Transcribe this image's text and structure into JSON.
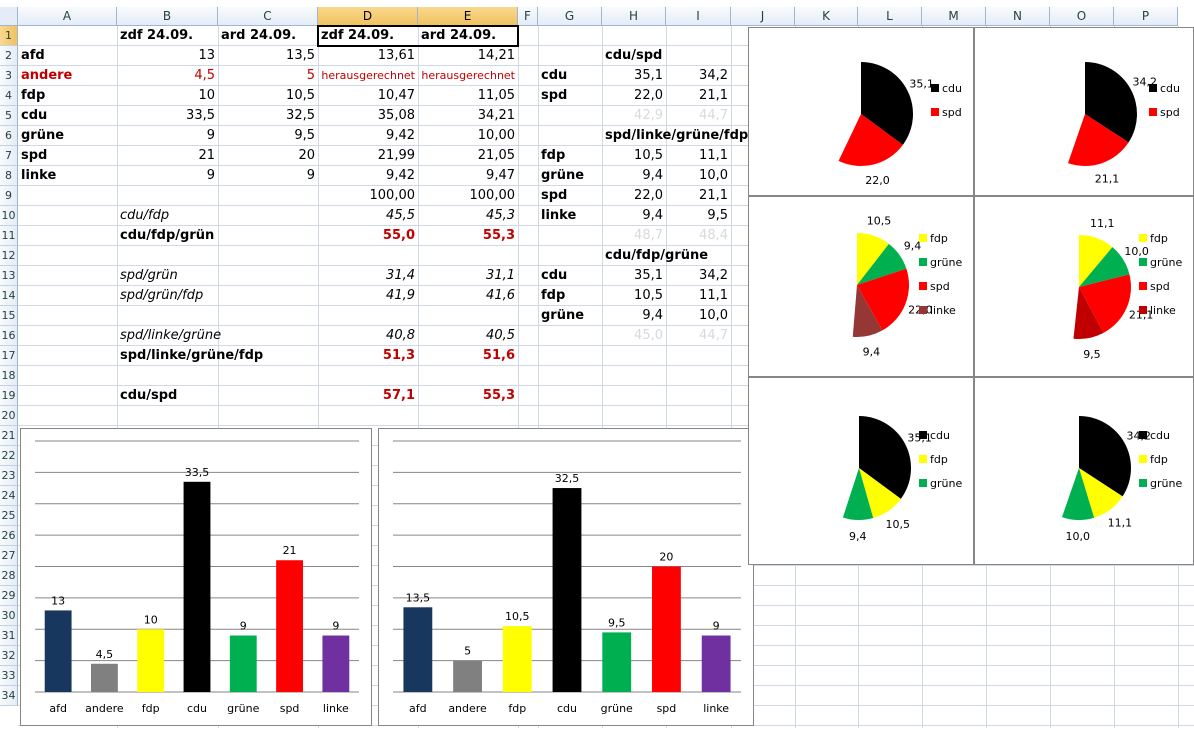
{
  "columns": [
    "A",
    "B",
    "C",
    "D",
    "E",
    "F",
    "G",
    "H",
    "I",
    "J",
    "K",
    "L",
    "M",
    "N",
    "O",
    "P"
  ],
  "rows": [
    "1",
    "2",
    "3",
    "4",
    "5",
    "6",
    "7",
    "8",
    "9",
    "10",
    "11",
    "12",
    "13",
    "14",
    "15",
    "16",
    "17",
    "18",
    "19",
    "20",
    "21",
    "22",
    "23",
    "24",
    "25",
    "26",
    "27",
    "28",
    "29",
    "30",
    "31",
    "32",
    "33",
    "34"
  ],
  "sheet": {
    "B1": "zdf 24.09.",
    "C1": "ard 24.09.",
    "D1": "zdf 24.09.",
    "E1": "ard 24.09.",
    "A2": "afd",
    "B2": "13",
    "C2": "13,5",
    "D2": "13,61",
    "E2": "14,21",
    "A3": "andere",
    "B3": "4,5",
    "C3": "5",
    "D3": "herausgerechnet",
    "E3": "herausgerechnet",
    "A4": "fdp",
    "B4": "10",
    "C4": "10,5",
    "D4": "10,47",
    "E4": "11,05",
    "A5": "cdu",
    "B5": "33,5",
    "C5": "32,5",
    "D5": "35,08",
    "E5": "34,21",
    "A6": "grüne",
    "B6": "9",
    "C6": "9,5",
    "D6": "9,42",
    "E6": "10,00",
    "A7": "spd",
    "B7": "21",
    "C7": "20",
    "D7": "21,99",
    "E7": "21,05",
    "A8": "linke",
    "B8": "9",
    "C8": "9",
    "D8": "9,42",
    "E8": "9,47",
    "D9": "100,00",
    "E9": "100,00",
    "B10": "cdu/fdp",
    "D10": "45,5",
    "E10": "45,3",
    "B11": "cdu/fdp/grün",
    "D11": "55,0",
    "E11": "55,3",
    "B13": "spd/grün",
    "D13": "31,4",
    "E13": "31,1",
    "B14": "spd/grün/fdp",
    "D14": "41,9",
    "E14": "41,6",
    "B16": "spd/linke/grüne",
    "D16": "40,8",
    "E16": "40,5",
    "B17": "spd/linke/grüne/fdp",
    "D17": "51,3",
    "E17": "51,6",
    "B19": "cdu/spd",
    "D19": "57,1",
    "E19": "55,3",
    "H2": "cdu/spd",
    "G3": "cdu",
    "H3": "35,1",
    "I3": "34,2",
    "G4": "spd",
    "H4": "22,0",
    "I4": "21,1",
    "H5": "42,9",
    "I5": "44,7",
    "H6": "spd/linke/grüne/fdp",
    "G7": "fdp",
    "H7": "10,5",
    "I7": "11,1",
    "G8": "grüne",
    "H8": "9,4",
    "I8": "10,0",
    "G9": "spd",
    "H9": "22,0",
    "I9": "21,1",
    "G10": "linke",
    "H10": "9,4",
    "I10": "9,5",
    "H11": "48,7",
    "I11": "48,4",
    "H12": "cdu/fdp/grüne",
    "G13": "cdu",
    "H13": "35,1",
    "I13": "34,2",
    "G14": "fdp",
    "H14": "10,5",
    "I14": "11,1",
    "G15": "grüne",
    "H15": "9,4",
    "I15": "10,0",
    "H16": "45,0",
    "I16": "44,7"
  },
  "colors": {
    "cdu": "#000000",
    "spd": "#ff0000",
    "fdp": "#ffff00",
    "grüne": "#00b050",
    "linke_dark": "#953735",
    "linke_dark2": "#c00000",
    "afd": "#17375e",
    "andere": "#808080",
    "linke": "#7030a0"
  },
  "chart_data": [
    {
      "type": "bar",
      "categories": [
        "afd",
        "andere",
        "fdp",
        "cdu",
        "grüne",
        "spd",
        "linke"
      ],
      "values": [
        13,
        4.5,
        10,
        33.5,
        9,
        21,
        9
      ],
      "value_labels": [
        "13",
        "4,5",
        "10",
        "33,5",
        "9",
        "21",
        "9"
      ],
      "ylim": [
        0,
        40
      ]
    },
    {
      "type": "bar",
      "categories": [
        "afd",
        "andere",
        "fdp",
        "cdu",
        "grüne",
        "spd",
        "linke"
      ],
      "values": [
        13.5,
        5,
        10.5,
        32.5,
        9.5,
        20,
        9
      ],
      "value_labels": [
        "13,5",
        "5",
        "10,5",
        "32,5",
        "9,5",
        "20",
        "9"
      ],
      "ylim": [
        0,
        40
      ]
    },
    {
      "type": "pie",
      "labels": [
        "cdu",
        "spd"
      ],
      "values": [
        35.1,
        22.0
      ],
      "value_labels": [
        "35,1",
        "22,0"
      ]
    },
    {
      "type": "pie",
      "labels": [
        "cdu",
        "spd"
      ],
      "values": [
        34.2,
        21.1
      ],
      "value_labels": [
        "34,2",
        "21,1"
      ]
    },
    {
      "type": "pie",
      "labels": [
        "fdp",
        "grüne",
        "spd",
        "linke"
      ],
      "values": [
        10.5,
        9.4,
        22.0,
        9.4
      ],
      "value_labels": [
        "10,5",
        "9,4",
        "22,0",
        "9,4"
      ]
    },
    {
      "type": "pie",
      "labels": [
        "fdp",
        "grüne",
        "spd",
        "linke"
      ],
      "values": [
        11.1,
        10.0,
        21.1,
        9.5
      ],
      "value_labels": [
        "11,1",
        "10,0",
        "21,1",
        "9,5"
      ]
    },
    {
      "type": "pie",
      "labels": [
        "cdu",
        "fdp",
        "grüne"
      ],
      "values": [
        35.1,
        10.5,
        9.4
      ],
      "value_labels": [
        "35,1",
        "10,5",
        "9,4"
      ]
    },
    {
      "type": "pie",
      "labels": [
        "cdu",
        "fdp",
        "grüne"
      ],
      "values": [
        34.2,
        11.1,
        10.0
      ],
      "value_labels": [
        "34,2",
        "11,1",
        "10,0"
      ]
    }
  ]
}
